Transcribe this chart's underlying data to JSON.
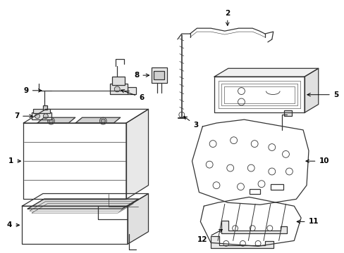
{
  "background_color": "#ffffff",
  "line_color": "#333333",
  "fig_width": 4.89,
  "fig_height": 3.6,
  "dpi": 100
}
